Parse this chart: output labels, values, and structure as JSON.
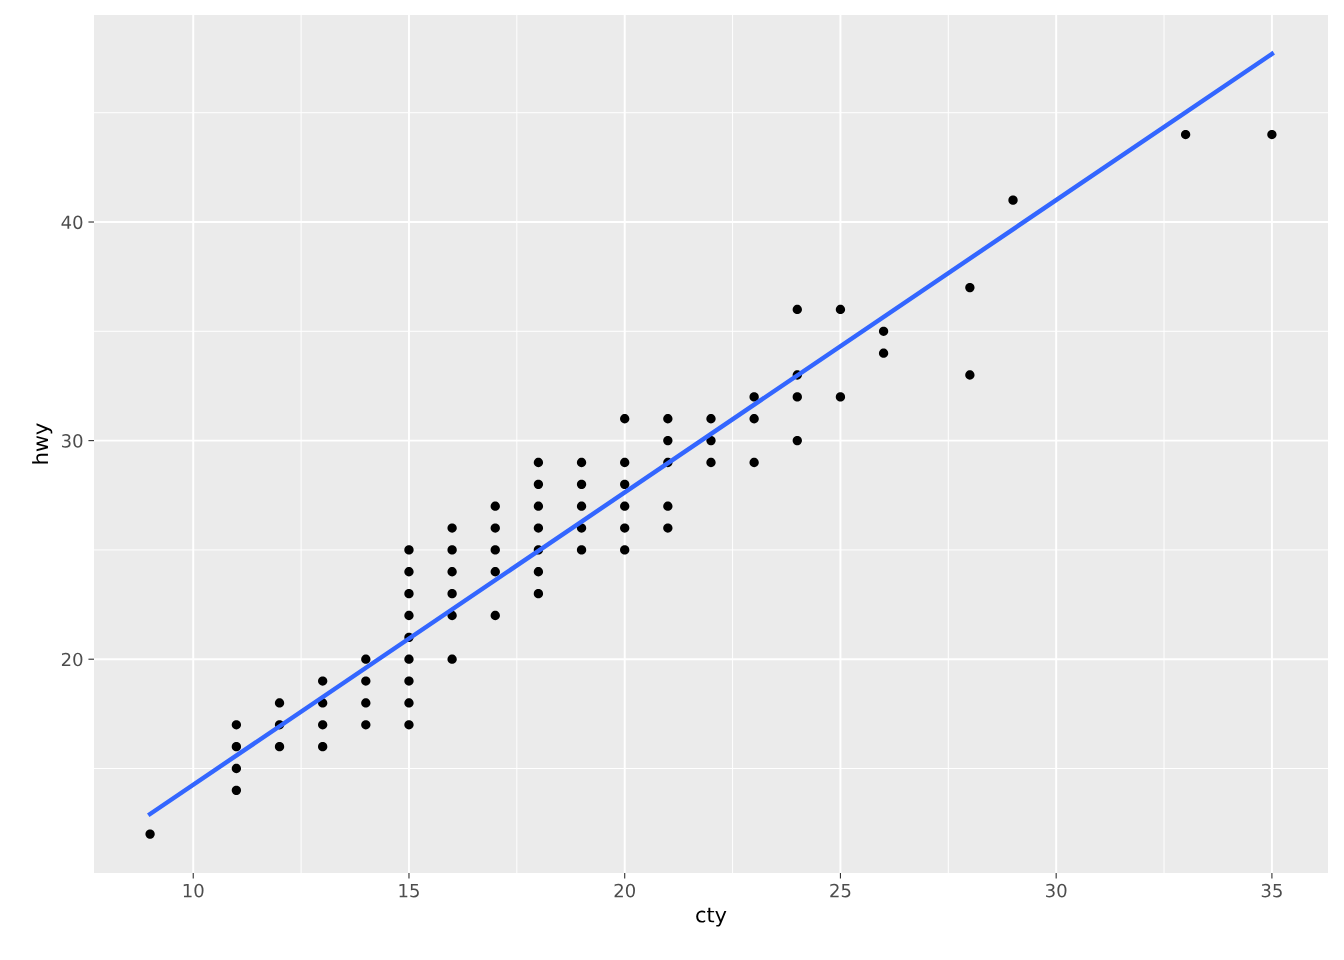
{
  "chart_data": {
    "type": "scatter",
    "xlabel": "cty",
    "ylabel": "hwy",
    "xlim": [
      7.7,
      36.3
    ],
    "ylim": [
      10.22,
      49.47
    ],
    "xticks": [
      10,
      15,
      20,
      25,
      30,
      35
    ],
    "yticks": [
      20,
      30,
      40
    ],
    "grid": true,
    "series": [
      {
        "marker": "circle",
        "color": "#000000",
        "x": [
          9,
          11,
          11,
          11,
          11,
          12,
          12,
          12,
          13,
          13,
          13,
          13,
          14,
          14,
          14,
          14,
          15,
          15,
          15,
          15,
          15,
          15,
          15,
          15,
          15,
          16,
          16,
          16,
          16,
          16,
          16,
          17,
          17,
          17,
          17,
          17,
          18,
          18,
          18,
          18,
          18,
          18,
          18,
          19,
          19,
          19,
          19,
          19,
          20,
          20,
          20,
          20,
          20,
          20,
          21,
          21,
          21,
          21,
          21,
          22,
          22,
          22,
          23,
          23,
          23,
          24,
          24,
          24,
          24,
          25,
          25,
          26,
          26,
          28,
          28,
          29,
          33,
          35
        ],
        "values": [
          12,
          17,
          16,
          15,
          14,
          18,
          17,
          16,
          19,
          18,
          17,
          16,
          20,
          19,
          18,
          17,
          25,
          24,
          23,
          22,
          21,
          20,
          19,
          18,
          17,
          26,
          25,
          24,
          23,
          22,
          20,
          27,
          26,
          25,
          24,
          22,
          29,
          28,
          27,
          26,
          25,
          24,
          23,
          29,
          28,
          27,
          26,
          25,
          31,
          29,
          28,
          27,
          26,
          25,
          31,
          30,
          29,
          27,
          26,
          31,
          30,
          29,
          32,
          31,
          29,
          36,
          33,
          32,
          30,
          36,
          32,
          35,
          34,
          37,
          33,
          41,
          44,
          44
        ]
      },
      {
        "type": "line",
        "color": "#3366ff",
        "x": [
          9,
          35
        ],
        "values": [
          12.92,
          47.69
        ]
      }
    ]
  }
}
